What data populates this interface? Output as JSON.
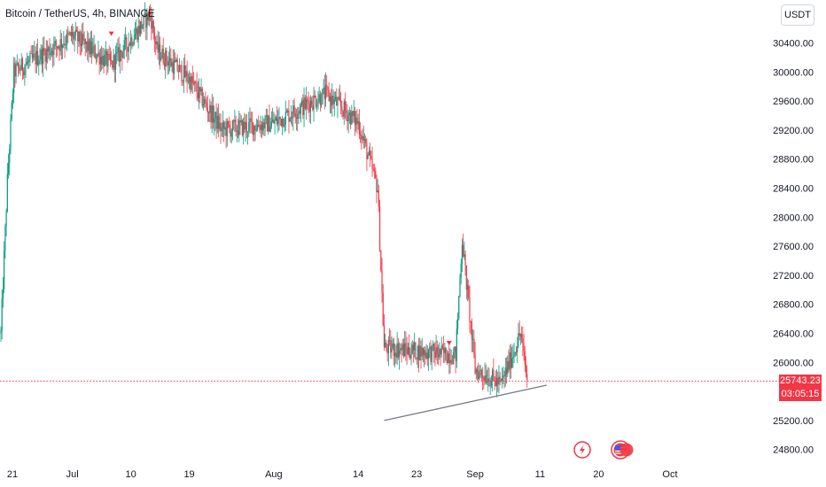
{
  "header": {
    "symbol_title": "Bitcoin / TetherUS, 4h, BINANCE",
    "currency_button": "USDT"
  },
  "price_scale": {
    "current_price": "25743.23",
    "countdown": "03:05:15"
  },
  "colors": {
    "up": "#089981",
    "down": "#f23645",
    "trendline": "#787b86",
    "axis_text": "#131722"
  },
  "icons": [
    "lightning-icon",
    "flag-icon"
  ],
  "chart_data": {
    "type": "candlestick",
    "title": "Bitcoin / TetherUS, 4h, BINANCE",
    "y_unit": "USDT",
    "y_range": [
      24600,
      30800
    ],
    "y_ticks": [
      "30400.00",
      "30000.00",
      "29600.00",
      "29200.00",
      "28800.00",
      "28400.00",
      "28000.00",
      "27600.00",
      "27200.00",
      "26800.00",
      "26400.00",
      "26000.00",
      "25200.00",
      "24800.00"
    ],
    "x_ticks": [
      "21",
      "Jul",
      "10",
      "19",
      "Aug",
      "14",
      "23",
      "Sep",
      "11",
      "20",
      "Oct"
    ],
    "last_price": 25743.23,
    "approx_close_path": [
      {
        "x": "Jun 20",
        "close": 26400
      },
      {
        "x": "Jun 21",
        "close": 28500
      },
      {
        "x": "Jun 22",
        "close": 30000
      },
      {
        "x": "Jul 1",
        "close": 30500
      },
      {
        "x": "Jul 7",
        "close": 30100
      },
      {
        "x": "Jul 13",
        "close": 30800
      },
      {
        "x": "Jul 14",
        "close": 30300
      },
      {
        "x": "Jul 19",
        "close": 29900
      },
      {
        "x": "Jul 24",
        "close": 29200
      },
      {
        "x": "Aug 1",
        "close": 29300
      },
      {
        "x": "Aug 9",
        "close": 29700
      },
      {
        "x": "Aug 14",
        "close": 29300
      },
      {
        "x": "Aug 17",
        "close": 28400
      },
      {
        "x": "Aug 18",
        "close": 26200
      },
      {
        "x": "Aug 29",
        "close": 26100
      },
      {
        "x": "Aug 30",
        "close": 27700
      },
      {
        "x": "Sep 1",
        "close": 25900
      },
      {
        "x": "Sep 5",
        "close": 25700
      },
      {
        "x": "Sep 8",
        "close": 26400
      },
      {
        "x": "Sep 9",
        "close": 25743.23
      }
    ],
    "trendline": [
      {
        "x": "Aug 18",
        "y": 25200
      },
      {
        "x": "Sep 9",
        "y": 25650
      }
    ]
  }
}
